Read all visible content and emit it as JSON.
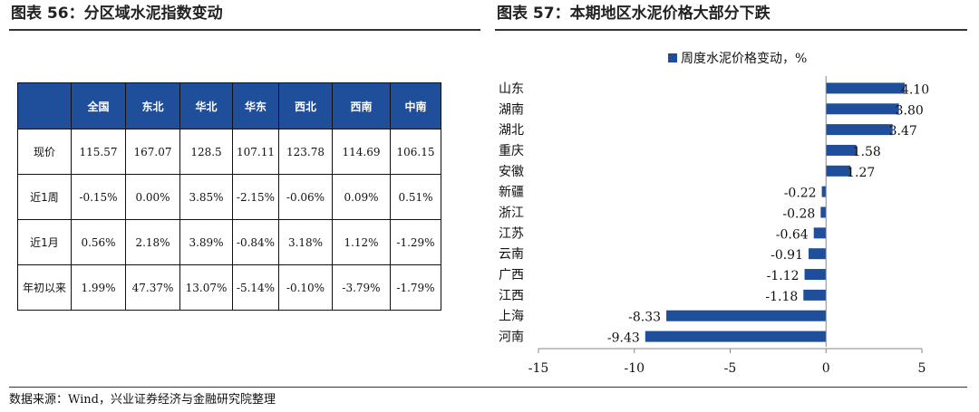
{
  "left_title": "图表 56：分区域水泥指数变动",
  "right_title": "图表 57：本期地区水泥价格大部分下跌",
  "source": "数据来源：Wind，兴业证券经济与金融研究院整理",
  "table": {
    "headers": [
      "",
      "全国",
      "东北",
      "华北",
      "华东",
      "西北",
      "西南",
      "中南"
    ],
    "rows": [
      {
        "label": "现价",
        "values": [
          "115.57",
          "167.07",
          "128.5",
          "107.11",
          "123.78",
          "114.69",
          "106.15"
        ]
      },
      {
        "label": "近1周",
        "values": [
          "-0.15%",
          "0.00%",
          "3.85%",
          "-2.15%",
          "-0.06%",
          "0.09%",
          "0.51%"
        ]
      },
      {
        "label": "近1月",
        "values": [
          "0.56%",
          "2.18%",
          "3.89%",
          "-0.84%",
          "3.18%",
          "1.12%",
          "-1.29%"
        ]
      },
      {
        "label": "年初以来",
        "values": [
          "1.99%",
          "47.37%",
          "13.07%",
          "-5.14%",
          "-0.10%",
          "-3.79%",
          "-1.79%"
        ]
      }
    ],
    "header_color": "#1f4e9a"
  },
  "chart_data": {
    "type": "bar",
    "orientation": "horizontal",
    "categories": [
      "山东",
      "湖南",
      "湖北",
      "重庆",
      "安徽",
      "新疆",
      "浙江",
      "江苏",
      "云南",
      "广西",
      "江西",
      "上海",
      "河南"
    ],
    "series": [
      {
        "name": "周度水泥价格变动，%",
        "values": [
          4.1,
          3.8,
          3.47,
          1.58,
          1.27,
          -0.22,
          -0.28,
          -0.64,
          -0.91,
          -1.12,
          -1.18,
          -8.33,
          -9.43
        ]
      }
    ],
    "value_labels": [
      "4.10",
      "3.80",
      "3.47",
      "1.58",
      "1.27",
      "-0.22",
      "-0.28",
      "-0.64",
      "-0.91",
      "-1.12",
      "-1.18",
      "-8.33",
      "-9.43"
    ],
    "xlim": [
      -15,
      5
    ],
    "xticks": [
      "-15",
      "-10",
      "-5",
      "0",
      "5"
    ],
    "legend_position": "top-right",
    "bar_color": "#1f4e9a",
    "grid": false
  }
}
